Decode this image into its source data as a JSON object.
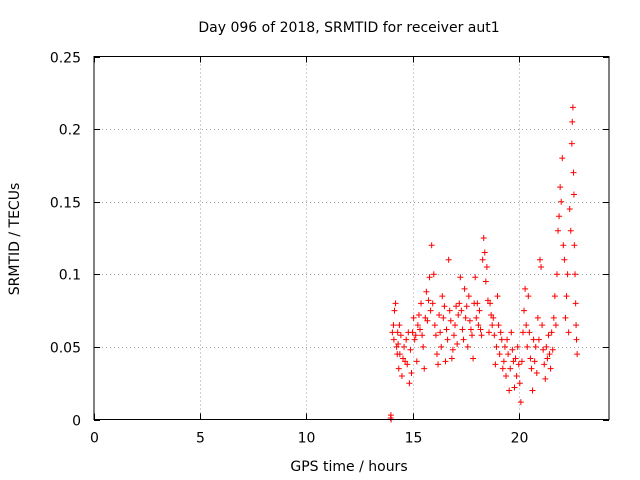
{
  "chart_data": {
    "type": "scatter",
    "title": "Day 096 of 2018, SRMTID for receiver aut1",
    "xlabel": "GPS time / hours",
    "ylabel": "SRMTID / TECUs",
    "xlim": [
      0,
      24.25
    ],
    "ylim": [
      0,
      0.25
    ],
    "xticks": [
      0,
      5,
      10,
      15,
      20
    ],
    "xtick_labels": [
      "0",
      "5",
      "10",
      "15",
      "20"
    ],
    "yticks": [
      0,
      0.05,
      0.1,
      0.15,
      0.2,
      0.25
    ],
    "ytick_labels": [
      "0",
      "0.05",
      "0.1",
      "0.15",
      "0.2",
      "0.25"
    ],
    "grid": true,
    "marker": "plus",
    "color": "#ff0000",
    "series": [
      {
        "name": "aut1",
        "points": [
          [
            13.97,
            0.001
          ],
          [
            13.98,
            0.003
          ],
          [
            13.99,
            0.0
          ],
          [
            14.05,
            0.06
          ],
          [
            14.1,
            0.065
          ],
          [
            14.12,
            0.055
          ],
          [
            14.15,
            0.075
          ],
          [
            14.2,
            0.08
          ],
          [
            14.25,
            0.05
          ],
          [
            14.28,
            0.045
          ],
          [
            14.3,
            0.06
          ],
          [
            14.32,
            0.052
          ],
          [
            14.35,
            0.035
          ],
          [
            14.38,
            0.065
          ],
          [
            14.4,
            0.045
          ],
          [
            14.45,
            0.058
          ],
          [
            14.5,
            0.03
          ],
          [
            14.55,
            0.042
          ],
          [
            14.6,
            0.05
          ],
          [
            14.65,
            0.04
          ],
          [
            14.7,
            0.055
          ],
          [
            14.75,
            0.038
          ],
          [
            14.8,
            0.06
          ],
          [
            14.85,
            0.025
          ],
          [
            14.9,
            0.048
          ],
          [
            14.95,
            0.032
          ],
          [
            15.0,
            0.06
          ],
          [
            15.05,
            0.07
          ],
          [
            15.1,
            0.055
          ],
          [
            15.15,
            0.058
          ],
          [
            15.2,
            0.04
          ],
          [
            15.25,
            0.065
          ],
          [
            15.3,
            0.072
          ],
          [
            15.35,
            0.062
          ],
          [
            15.4,
            0.08
          ],
          [
            15.45,
            0.058
          ],
          [
            15.5,
            0.05
          ],
          [
            15.55,
            0.035
          ],
          [
            15.6,
            0.07
          ],
          [
            15.65,
            0.088
          ],
          [
            15.7,
            0.068
          ],
          [
            15.75,
            0.082
          ],
          [
            15.8,
            0.098
          ],
          [
            15.85,
            0.075
          ],
          [
            15.9,
            0.12
          ],
          [
            15.95,
            0.08
          ],
          [
            16.0,
            0.1
          ],
          [
            16.05,
            0.065
          ],
          [
            16.1,
            0.058
          ],
          [
            16.15,
            0.045
          ],
          [
            16.2,
            0.038
          ],
          [
            16.25,
            0.072
          ],
          [
            16.3,
            0.06
          ],
          [
            16.35,
            0.05
          ],
          [
            16.4,
            0.085
          ],
          [
            16.45,
            0.07
          ],
          [
            16.5,
            0.078
          ],
          [
            16.55,
            0.04
          ],
          [
            16.6,
            0.062
          ],
          [
            16.65,
            0.055
          ],
          [
            16.7,
            0.11
          ],
          [
            16.75,
            0.075
          ],
          [
            16.8,
            0.068
          ],
          [
            16.85,
            0.042
          ],
          [
            16.9,
            0.048
          ],
          [
            16.95,
            0.058
          ],
          [
            17.0,
            0.065
          ],
          [
            17.05,
            0.078
          ],
          [
            17.1,
            0.052
          ],
          [
            17.15,
            0.072
          ],
          [
            17.2,
            0.08
          ],
          [
            17.25,
            0.098
          ],
          [
            17.3,
            0.075
          ],
          [
            17.35,
            0.062
          ],
          [
            17.4,
            0.055
          ],
          [
            17.45,
            0.09
          ],
          [
            17.5,
            0.07
          ],
          [
            17.55,
            0.078
          ],
          [
            17.6,
            0.05
          ],
          [
            17.65,
            0.085
          ],
          [
            17.7,
            0.068
          ],
          [
            17.75,
            0.062
          ],
          [
            17.8,
            0.058
          ],
          [
            17.85,
            0.042
          ],
          [
            17.9,
            0.08
          ],
          [
            17.95,
            0.098
          ],
          [
            18.0,
            0.07
          ],
          [
            18.05,
            0.08
          ],
          [
            18.1,
            0.065
          ],
          [
            18.15,
            0.075
          ],
          [
            18.2,
            0.062
          ],
          [
            18.25,
            0.058
          ],
          [
            18.3,
            0.11
          ],
          [
            18.35,
            0.125
          ],
          [
            18.4,
            0.115
          ],
          [
            18.45,
            0.095
          ],
          [
            18.5,
            0.105
          ],
          [
            18.55,
            0.082
          ],
          [
            18.6,
            0.06
          ],
          [
            18.65,
            0.08
          ],
          [
            18.7,
            0.072
          ],
          [
            18.75,
            0.065
          ],
          [
            18.8,
            0.07
          ],
          [
            18.85,
            0.058
          ],
          [
            18.9,
            0.038
          ],
          [
            18.95,
            0.05
          ],
          [
            19.0,
            0.085
          ],
          [
            19.05,
            0.065
          ],
          [
            19.1,
            0.045
          ],
          [
            19.15,
            0.06
          ],
          [
            19.2,
            0.055
          ],
          [
            19.25,
            0.035
          ],
          [
            19.3,
            0.04
          ],
          [
            19.35,
            0.05
          ],
          [
            19.4,
            0.03
          ],
          [
            19.45,
            0.055
          ],
          [
            19.5,
            0.045
          ],
          [
            19.55,
            0.02
          ],
          [
            19.6,
            0.035
          ],
          [
            19.65,
            0.06
          ],
          [
            19.7,
            0.048
          ],
          [
            19.75,
            0.04
          ],
          [
            19.8,
            0.022
          ],
          [
            19.85,
            0.042
          ],
          [
            19.9,
            0.03
          ],
          [
            19.95,
            0.05
          ],
          [
            20.0,
            0.038
          ],
          [
            20.05,
            0.025
          ],
          [
            20.1,
            0.012
          ],
          [
            20.15,
            0.04
          ],
          [
            20.2,
            0.06
          ],
          [
            20.25,
            0.075
          ],
          [
            20.3,
            0.09
          ],
          [
            20.35,
            0.065
          ],
          [
            20.4,
            0.05
          ],
          [
            20.45,
            0.085
          ],
          [
            20.5,
            0.06
          ],
          [
            20.55,
            0.042
          ],
          [
            20.6,
            0.035
          ],
          [
            20.65,
            0.02
          ],
          [
            20.7,
            0.055
          ],
          [
            20.75,
            0.04
          ],
          [
            20.8,
            0.05
          ],
          [
            20.85,
            0.032
          ],
          [
            20.9,
            0.07
          ],
          [
            20.95,
            0.055
          ],
          [
            21.0,
            0.11
          ],
          [
            21.05,
            0.105
          ],
          [
            21.1,
            0.065
          ],
          [
            21.15,
            0.048
          ],
          [
            21.2,
            0.038
          ],
          [
            21.25,
            0.028
          ],
          [
            21.3,
            0.05
          ],
          [
            21.35,
            0.042
          ],
          [
            21.4,
            0.058
          ],
          [
            21.45,
            0.045
          ],
          [
            21.5,
            0.035
          ],
          [
            21.55,
            0.06
          ],
          [
            21.6,
            0.048
          ],
          [
            21.65,
            0.07
          ],
          [
            21.7,
            0.085
          ],
          [
            21.75,
            0.065
          ],
          [
            21.8,
            0.1
          ],
          [
            21.85,
            0.13
          ],
          [
            21.9,
            0.14
          ],
          [
            21.95,
            0.16
          ],
          [
            22.0,
            0.15
          ],
          [
            22.05,
            0.18
          ],
          [
            22.1,
            0.12
          ],
          [
            22.15,
            0.11
          ],
          [
            22.2,
            0.07
          ],
          [
            22.25,
            0.085
          ],
          [
            22.3,
            0.1
          ],
          [
            22.35,
            0.06
          ],
          [
            22.4,
            0.145
          ],
          [
            22.45,
            0.13
          ],
          [
            22.5,
            0.19
          ],
          [
            22.52,
            0.205
          ],
          [
            22.55,
            0.215
          ],
          [
            22.58,
            0.17
          ],
          [
            22.6,
            0.155
          ],
          [
            22.62,
            0.12
          ],
          [
            22.65,
            0.1
          ],
          [
            22.68,
            0.08
          ],
          [
            22.7,
            0.065
          ],
          [
            22.72,
            0.055
          ],
          [
            22.75,
            0.045
          ]
        ]
      }
    ]
  }
}
